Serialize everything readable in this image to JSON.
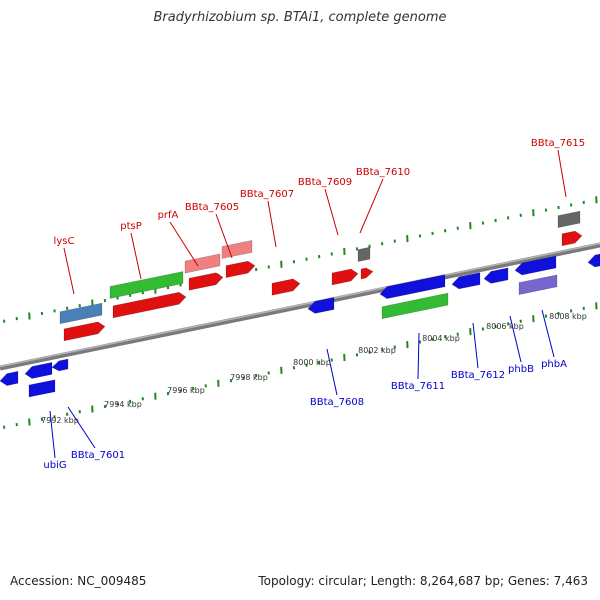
{
  "title": "Bradyrhizobium sp. BTAi1, complete genome",
  "footer": {
    "accession": "Accession: NC_009485",
    "summary": "Topology: circular; Length: 8,264,687 bp; Genes: 7,463"
  },
  "colors": {
    "backbone": "#8c8c8c",
    "tick": "#1e8a1e",
    "top_label": "#cc0000",
    "bottom_label": "#0000cc",
    "kbp_label": "#333333"
  },
  "scale_labels": [
    "7992 kbp",
    "7994 kbp",
    "7996 kbp",
    "7998 kbp",
    "8000 kbp",
    "8002 kbp",
    "8004 kbp",
    "8006 kbp",
    "8008 kbp"
  ],
  "top_gene_labels": [
    "lysC",
    "ptsP",
    "prfA",
    "BBta_7605",
    "BBta_7607",
    "BBta_7609",
    "BBta_7610",
    "BBta_7615"
  ],
  "bottom_gene_labels": [
    "ubiG",
    "BBta_7601",
    "BBta_7608",
    "BBta_7611",
    "BBta_7612",
    "phbB",
    "phbA"
  ]
}
